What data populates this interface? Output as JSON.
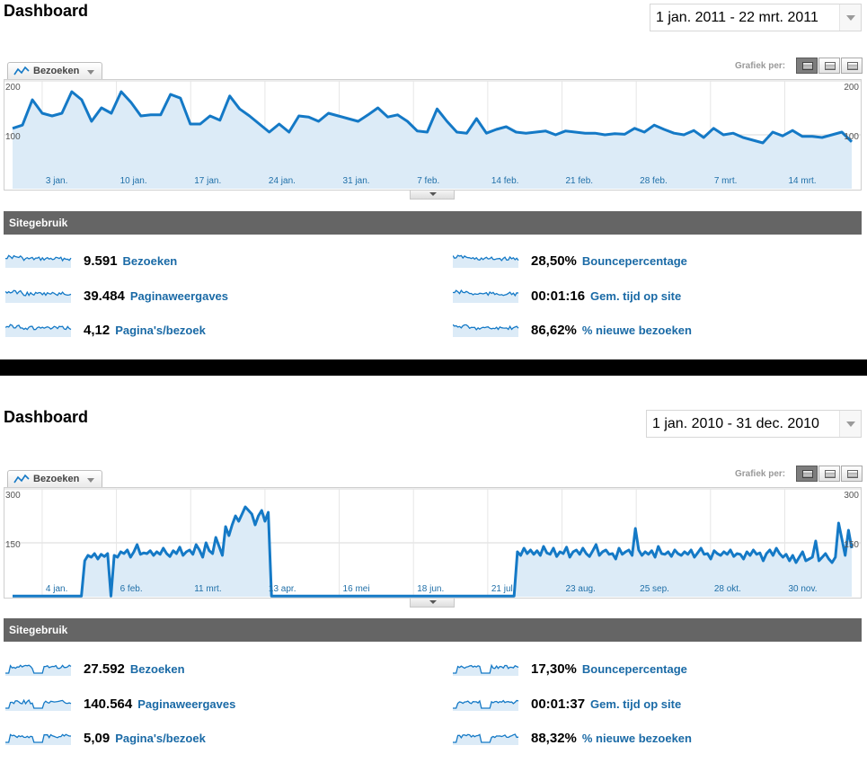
{
  "panels": [
    {
      "title": "Dashboard",
      "date_range": "1 jan. 2011 - 22 mrt. 2011",
      "metric_tab": "Bezoeken",
      "graph_by_label": "Grafiek per:",
      "section_title": "Sitegebruik",
      "stats": [
        {
          "value": "9.591",
          "label": "Bezoeken"
        },
        {
          "value": "28,50%",
          "label": "Bouncepercentage"
        },
        {
          "value": "39.484",
          "label": "Paginaweergaves"
        },
        {
          "value": "00:01:16",
          "label": "Gem. tijd op site"
        },
        {
          "value": "4,12",
          "label": "Pagina's/bezoek"
        },
        {
          "value": "86,62%",
          "label": "% nieuwe bezoeken"
        }
      ],
      "chart_data": {
        "type": "area",
        "ylim": [
          0,
          200
        ],
        "y_ticks": [
          "200",
          "100"
        ],
        "x_tick_labels": [
          "3 jan.",
          "10 jan.",
          "17 jan.",
          "24 jan.",
          "31 jan.",
          "7 feb.",
          "14 feb.",
          "21 feb.",
          "28 feb.",
          "7 mrt.",
          "14 mrt."
        ],
        "series": [
          {
            "values": [
              112,
              118,
              165,
              140,
              135,
              140,
              180,
              165,
              125,
              150,
              140,
              180,
              160,
              135,
              137,
              137,
              175,
              168,
              120,
              120,
              135,
              127,
              172,
              148,
              135,
              120,
              105,
              120,
              105,
              135,
              133,
              125,
              140,
              135,
              130,
              125,
              137,
              150,
              133,
              137,
              125,
              107,
              105,
              148,
              125,
              105,
              103,
              130,
              103,
              110,
              115,
              105,
              103,
              105,
              107,
              100,
              107,
              105,
              103,
              103,
              100,
              102,
              101,
              112,
              105,
              118,
              110,
              103,
              100,
              108,
              95,
              112,
              100,
              103,
              95,
              90,
              85,
              105,
              98,
              108,
              97,
              97,
              95,
              100,
              105,
              87
            ]
          }
        ]
      }
    },
    {
      "title": "Dashboard",
      "date_range": "1 jan. 2010 - 31 dec. 2010",
      "metric_tab": "Bezoeken",
      "graph_by_label": "Grafiek per:",
      "section_title": "Sitegebruik",
      "stats": [
        {
          "value": "27.592",
          "label": "Bezoeken"
        },
        {
          "value": "17,30%",
          "label": "Bouncepercentage"
        },
        {
          "value": "140.564",
          "label": "Paginaweergaves"
        },
        {
          "value": "00:01:37",
          "label": "Gem. tijd op site"
        },
        {
          "value": "5,09",
          "label": "Pagina's/bezoek"
        },
        {
          "value": "88,32%",
          "label": "% nieuwe bezoeken"
        }
      ],
      "chart_data": {
        "type": "area",
        "ylim": [
          0,
          300
        ],
        "y_ticks": [
          "300",
          "150"
        ],
        "x_tick_labels": [
          "4 jan.",
          "6 feb.",
          "11 mrt.",
          "13 apr.",
          "16 mei",
          "18 jun.",
          "21 jul.",
          "23 aug.",
          "25 sep.",
          "28 okt.",
          "30 nov."
        ],
        "series": [
          {
            "values": [
              2,
              2,
              2,
              2,
              2,
              2,
              2,
              2,
              2,
              2,
              2,
              2,
              2,
              2,
              2,
              2,
              2,
              2,
              2,
              2,
              2,
              2,
              100,
              115,
              110,
              120,
              105,
              118,
              112,
              120,
              2,
              115,
              110,
              125,
              120,
              130,
              110,
              125,
              145,
              118,
              122,
              120,
              128,
              115,
              125,
              118,
              135,
              120,
              112,
              128,
              120,
              138,
              115,
              125,
              130,
              118,
              145,
              130,
              110,
              150,
              128,
              120,
              165,
              140,
              115,
              195,
              170,
              200,
              225,
              210,
              230,
              250,
              240,
              230,
              200,
              225,
              240,
              210,
              235,
              2,
              2,
              2,
              2,
              2,
              2,
              2,
              2,
              2,
              2,
              2,
              2,
              2,
              2,
              2,
              2,
              2,
              2,
              2,
              2,
              2,
              2,
              2,
              2,
              2,
              2,
              2,
              2,
              2,
              2,
              2,
              2,
              2,
              2,
              2,
              2,
              2,
              2,
              2,
              2,
              2,
              2,
              2,
              2,
              2,
              2,
              2,
              2,
              2,
              2,
              2,
              2,
              2,
              2,
              2,
              2,
              2,
              2,
              2,
              2,
              2,
              2,
              2,
              2,
              2,
              2,
              2,
              2,
              2,
              2,
              2,
              2,
              2,
              2,
              2,
              125,
              115,
              135,
              120,
              130,
              118,
              128,
              115,
              140,
              122,
              118,
              135,
              112,
              125,
              120,
              138,
              110,
              125,
              130,
              118,
              135,
              120,
              112,
              128,
              145,
              115,
              125,
              130,
              118,
              120,
              105,
              135,
              118,
              125,
              130,
              115,
              190,
              130,
              115,
              125,
              118,
              128,
              110,
              140,
              120,
              118,
              125,
              112,
              130,
              120,
              115,
              125,
              118,
              130,
              110,
              122,
              135,
              118,
              120,
              105,
              128,
              120,
              115,
              125,
              118,
              130,
              112,
              120,
              118,
              105,
              125,
              115,
              130,
              118,
              122,
              100,
              120,
              130,
              115,
              135,
              120,
              110,
              118,
              100,
              115,
              95,
              110,
              125,
              100,
              105,
              110,
              155,
              100,
              110,
              120,
              105,
              95,
              110,
              205,
              160,
              115,
              185,
              135
            ]
          }
        ]
      }
    }
  ],
  "colors": {
    "line": "#1479c6",
    "fill": "#dcebf7",
    "grid": "#d8d8d8",
    "axis_text": "#1f6fa8",
    "section_bar": "#656565",
    "label": "#1a6aa6"
  },
  "icons": {
    "metric_tab_icon": "line-chart-icon",
    "dropdown": "chevron-down-icon",
    "view_buttons": [
      "day-view-icon",
      "week-view-icon",
      "month-view-icon"
    ]
  }
}
